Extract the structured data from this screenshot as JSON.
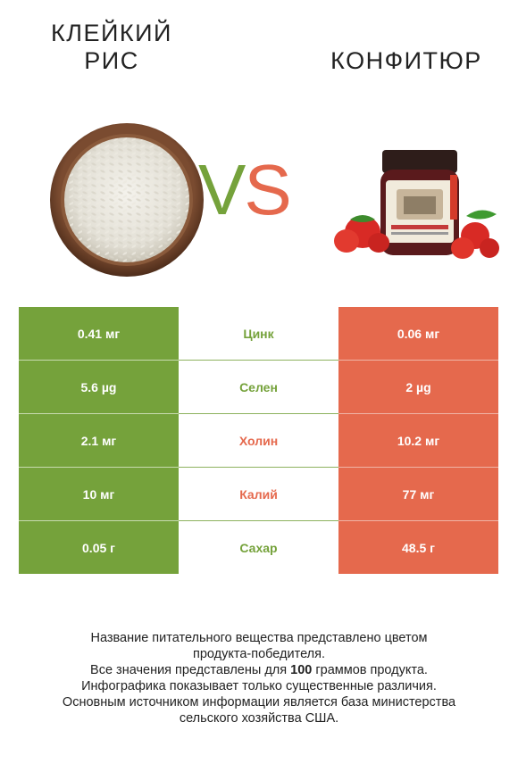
{
  "header": {
    "left_title_line1": "КЛЕЙКИЙ",
    "left_title_line2": "РИС",
    "right_title": "КОНФИТЮР",
    "vs_v": "V",
    "vs_s": "S"
  },
  "colors": {
    "winner_left": "#75a23b",
    "winner_right": "#e5694d"
  },
  "images": {
    "left": "rice-bowl-image",
    "right": "jam-jar-with-strawberries-image"
  },
  "rows": [
    {
      "left": "0.41 мг",
      "nutrient": "Цинк",
      "right": "0.06 мг",
      "winner": "left"
    },
    {
      "left": "5.6 µg",
      "nutrient": "Селен",
      "right": "2 µg",
      "winner": "left"
    },
    {
      "left": "2.1 мг",
      "nutrient": "Холин",
      "right": "10.2 мг",
      "winner": "right"
    },
    {
      "left": "10 мг",
      "nutrient": "Калий",
      "right": "77 мг",
      "winner": "right"
    },
    {
      "left": "0.05 г",
      "nutrient": "Сахар",
      "right": "48.5 г",
      "winner": "left"
    }
  ],
  "footnote": {
    "line1": "Название питательного вещества представлено цветом",
    "line2": "продукта-победителя.",
    "line3_pre": "Все значения представлены для ",
    "line3_bold": "100",
    "line3_post": " граммов продукта.",
    "line4": "Инфографика показывает только существенные различия.",
    "line5": "Основным источником информации является база министерства",
    "line6": "сельского хозяйства США."
  }
}
